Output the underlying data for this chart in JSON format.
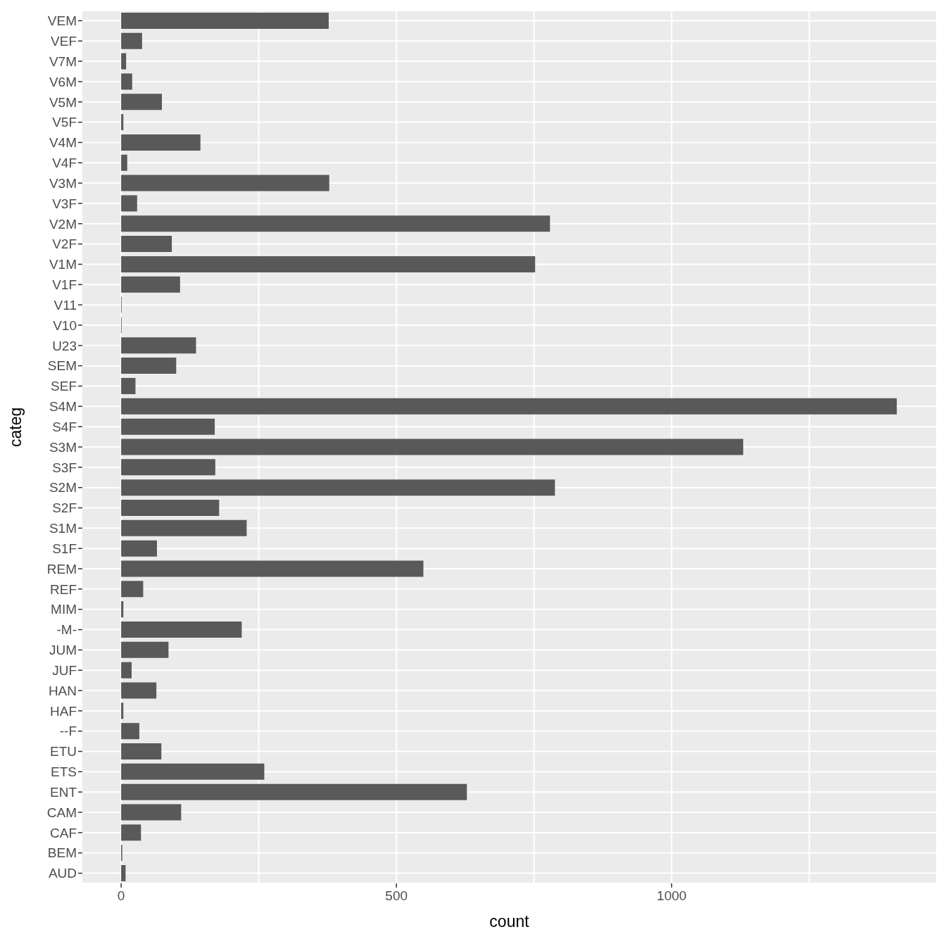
{
  "chart_data": {
    "type": "bar",
    "orientation": "horizontal",
    "xlabel": "count",
    "ylabel": "categ",
    "categories": [
      "VEM",
      "VEF",
      "V7M",
      "V6M",
      "V5M",
      "V5F",
      "V4M",
      "V4F",
      "V3M",
      "V3F",
      "V2M",
      "V2F",
      "V1M",
      "V1F",
      "V11",
      "V10",
      "U23",
      "SEM",
      "SEF",
      "S4M",
      "S4F",
      "S3M",
      "S3F",
      "S2M",
      "S2F",
      "S1M",
      "S1F",
      "REM",
      "REF",
      "MIM",
      "-M-",
      "JUM",
      "JUF",
      "HAN",
      "HAF",
      "--F",
      "ETU",
      "ETS",
      "ENT",
      "CAM",
      "CAF",
      "BEM",
      "AUD"
    ],
    "values": [
      377,
      38,
      9,
      20,
      74,
      4,
      144,
      11,
      378,
      29,
      779,
      92,
      752,
      107,
      1,
      1,
      136,
      100,
      26,
      1409,
      170,
      1130,
      171,
      788,
      178,
      228,
      65,
      549,
      40,
      4,
      219,
      86,
      19,
      64,
      4,
      33,
      73,
      260,
      628,
      109,
      36,
      2,
      8
    ],
    "color": "#595959",
    "xlim": [
      -70.5,
      1480.5
    ],
    "xticks": [
      0,
      {
        "value": 250,
        "label": null
      },
      500,
      {
        "value": 750,
        "label": null
      },
      1000,
      {
        "value": 1250,
        "label": null
      }
    ],
    "grid": true
  }
}
